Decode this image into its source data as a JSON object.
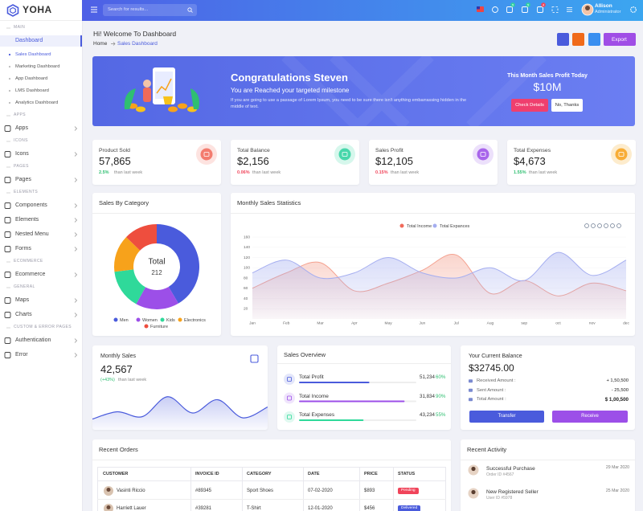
{
  "brand": "YOHA",
  "header": {
    "search_placeholder": "Search for results...",
    "badges": {
      "cart": "5",
      "bell": "5",
      "chat": "4"
    },
    "user_name": "Allison",
    "user_role": "Administrator"
  },
  "sidebar": [
    {
      "heading": "MAIN",
      "items": [
        {
          "label": "Dashboard",
          "active": true,
          "children": [
            "Sales Dashboard",
            "Marketing Dashboard",
            "App Dashboard",
            "LMS Dashboard",
            "Analytics Dashboard"
          ],
          "active_child": 0
        }
      ]
    },
    {
      "heading": "APPS",
      "items": [
        {
          "label": "Apps"
        }
      ]
    },
    {
      "heading": "ICONS",
      "items": [
        {
          "label": "Icons"
        }
      ]
    },
    {
      "heading": "PAGES",
      "items": [
        {
          "label": "Pages"
        }
      ]
    },
    {
      "heading": "ELEMENTS",
      "items": [
        {
          "label": "Components"
        },
        {
          "label": "Elements"
        },
        {
          "label": "Nested Menu"
        },
        {
          "label": "Forms"
        }
      ]
    },
    {
      "heading": "ECOMMERCE",
      "items": [
        {
          "label": "Ecommerce"
        }
      ]
    },
    {
      "heading": "GENERAL",
      "items": [
        {
          "label": "Maps"
        },
        {
          "label": "Charts"
        }
      ]
    },
    {
      "heading": "CUSTOM & ERROR PAGES",
      "items": [
        {
          "label": "Authentication"
        },
        {
          "label": "Error"
        }
      ]
    }
  ],
  "page": {
    "title": "Hi! Welcome To Dashboard",
    "breadcrumb": [
      "Home",
      "Sales Dashboard"
    ],
    "export_button": "Export"
  },
  "banner": {
    "heading": "Congratulations Steven",
    "subheading": "You are Reached your targeted milestone",
    "text": "If you are going to use a passage of Lorem Ipsum, you need to be sure there isn't anything embarrassing hidden in the middle of text.",
    "profit_title": "This Month Sales Profit Today",
    "profit_value": "$10M",
    "buttons": [
      "Check Details",
      "No, Thanks"
    ]
  },
  "stats": [
    {
      "label": "Product Sold",
      "value": "57,865",
      "change": "2.5%",
      "change_color": "#2fbf71",
      "note": "than last week",
      "color": "#f16a5a",
      "bg": "#fde3e0"
    },
    {
      "label": "Total Balance",
      "value": "$2,156",
      "change": "0.06%",
      "change_color": "#f0445a",
      "note": "than last week",
      "color": "#2fd1a0",
      "bg": "#d6f7ec"
    },
    {
      "label": "Sales Profit",
      "value": "$12,105",
      "change": "0.15%",
      "change_color": "#f0445a",
      "note": "than last week",
      "color": "#9c4fe8",
      "bg": "#ece0fb"
    },
    {
      "label": "Total Expenses",
      "value": "$4,673",
      "change": "1.55%",
      "change_color": "#2fbf71",
      "note": "than last week",
      "color": "#f7a21b",
      "bg": "#fdeccd"
    }
  ],
  "category_chart": {
    "type": "donut",
    "title": "Sales By Category",
    "total_label": "Total",
    "total": 212,
    "series": [
      {
        "name": "Men",
        "color": "#4a5bdc",
        "value": 88
      },
      {
        "name": "Women",
        "color": "#9c4fe8",
        "value": 35
      },
      {
        "name": "Kids",
        "color": "#2fd99a",
        "value": 32
      },
      {
        "name": "Electronics",
        "color": "#f7a21b",
        "value": 30
      },
      {
        "name": "Furniture",
        "color": "#ee4e3e",
        "value": 27
      }
    ]
  },
  "monthly_chart": {
    "type": "area",
    "title": "Monthly Sales Statistics",
    "categories": [
      "Jan",
      "Feb",
      "Mar",
      "Apr",
      "May",
      "Jun",
      "Jul",
      "Aug",
      "sep",
      "oct",
      "nov",
      "dec"
    ],
    "series": [
      {
        "name": "Total Income",
        "color": "#f4a18f",
        "values": [
          60,
          90,
          110,
          55,
          70,
          95,
          125,
          50,
          75,
          45,
          70,
          55
        ]
      },
      {
        "name": "Total Expances",
        "color": "#a5aef0",
        "values": [
          90,
          115,
          80,
          90,
          120,
          90,
          80,
          100,
          75,
          130,
          85,
          115
        ]
      }
    ],
    "ylim": [
      0,
      160
    ],
    "yticks": [
      20,
      40,
      60,
      80,
      100,
      120,
      140,
      160
    ]
  },
  "monthly_sales": {
    "title": "Monthly Sales",
    "value": "42,567",
    "change": "(+43%)",
    "note": "than last week",
    "type": "area",
    "color": "#4a5bdc",
    "values": [
      18,
      30,
      22,
      55,
      28,
      50,
      20,
      38
    ],
    "ylim": [
      0,
      80
    ]
  },
  "overview": {
    "title": "Sales Overview",
    "items": [
      {
        "label": "Total Profit",
        "amount": "51,234",
        "percent": 60,
        "percent_label": "60%",
        "color": "#4a5bdc"
      },
      {
        "label": "Total Income",
        "amount": "31,834",
        "percent": 90,
        "percent_label": "90%",
        "color": "#9c4fe8"
      },
      {
        "label": "Total Expenses",
        "amount": "43,234",
        "percent": 55,
        "percent_label": "55%",
        "color": "#2fd99a"
      }
    ]
  },
  "balance": {
    "title": "Your Current Balance",
    "amount": "$32745.00",
    "rows": [
      {
        "label": "Received Amount :",
        "value": "+ 1,50,500"
      },
      {
        "label": "Sent Amount :",
        "value": "- 25,500"
      },
      {
        "label": "Total Amount :",
        "value": "$ 1,00,500"
      }
    ],
    "buttons": [
      "Transfer",
      "Receive"
    ]
  },
  "orders": {
    "title": "Recent Orders",
    "columns": [
      "CUSTOMER",
      "INVOICE ID",
      "CATEGORY",
      "DATE",
      "PRICE",
      "STATUS"
    ],
    "rows": [
      [
        "Vasinti Riccio",
        "#89345",
        "Sport Shoes",
        "07-02-2020",
        "$893",
        "Pending"
      ],
      [
        "Harriett Lauer",
        "#39281",
        "T-Shirt",
        "12-01-2020",
        "$456",
        "Delivered"
      ]
    ]
  },
  "activity": {
    "title": "Recent Activity",
    "items": [
      {
        "title": "Successful Purchase",
        "sub": "Order ID #4567",
        "date": "29 Mar 2020"
      },
      {
        "title": "New Registered Seller",
        "sub": "User ID #5978",
        "date": "25 Mar 2020"
      }
    ]
  }
}
